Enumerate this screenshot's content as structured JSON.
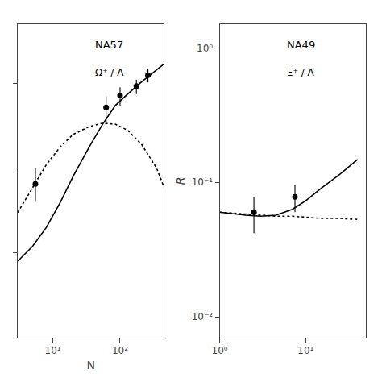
{
  "chart_data": [
    {
      "type": "line",
      "log": true,
      "grid": false,
      "tick_labels": "x",
      "xlabel": "N",
      "xlim": [
        3,
        450
      ],
      "ylim": [
        0.0001,
        0.5
      ],
      "xticks": [
        {
          "value": 10,
          "label": "10¹"
        },
        {
          "value": 100,
          "label": "10²"
        }
      ],
      "yticks": [
        0.0001,
        0.001,
        0.01,
        0.1
      ],
      "annotations": [
        "NA57",
        "Ω̄⁺ / Λ̄"
      ],
      "series": [
        {
          "type": "line",
          "line_style": "solid",
          "color": "#000000",
          "x": [
            3,
            5,
            8,
            13,
            20,
            35,
            55,
            85,
            130,
            210,
            350,
            450
          ],
          "values": [
            0.0008,
            0.0012,
            0.002,
            0.004,
            0.008,
            0.018,
            0.033,
            0.055,
            0.075,
            0.105,
            0.145,
            0.17
          ]
        },
        {
          "type": "line",
          "line_style": "dotted",
          "color": "#000000",
          "x": [
            3,
            5,
            8,
            13,
            20,
            35,
            55,
            85,
            130,
            210,
            350,
            450
          ],
          "values": [
            0.003,
            0.006,
            0.011,
            0.018,
            0.025,
            0.031,
            0.034,
            0.033,
            0.028,
            0.019,
            0.01,
            0.006
          ]
        },
        {
          "type": "scatter",
          "marker": "circle",
          "color": "#000000",
          "x": [
            5.5,
            62.0,
            100.0,
            175.0,
            260.0
          ],
          "values": [
            0.0065,
            0.052,
            0.072,
            0.093,
            0.125
          ],
          "error_low": [
            0.0025,
            0.018,
            0.018,
            0.018,
            0.022
          ],
          "error_high": [
            0.0035,
            0.018,
            0.018,
            0.018,
            0.022
          ]
        }
      ]
    },
    {
      "type": "line",
      "log": true,
      "grid": false,
      "ylabel": "R",
      "xlim": [
        1,
        50
      ],
      "ylim": [
        0.007,
        1.5
      ],
      "xticks": [
        {
          "value": 1,
          "label": "10⁰"
        },
        {
          "value": 10,
          "label": "10¹"
        }
      ],
      "yticks": [
        {
          "value": 0.01,
          "label": "10⁻²"
        },
        {
          "value": 0.1,
          "label": "10⁻¹"
        },
        {
          "value": 1,
          "label": "10⁰"
        }
      ],
      "annotations": [
        "NA49",
        "Ξ̄⁺ / Λ̄"
      ],
      "series": [
        {
          "type": "line",
          "line_style": "solid",
          "color": "#000000",
          "x": [
            1.0,
            1.5,
            2.0,
            3.0,
            4.5,
            7.0,
            10,
            15,
            25,
            40
          ],
          "values": [
            0.06,
            0.058,
            0.057,
            0.056,
            0.057,
            0.063,
            0.073,
            0.09,
            0.115,
            0.148
          ]
        },
        {
          "type": "line",
          "line_style": "dotted",
          "color": "#000000",
          "x": [
            1.0,
            1.5,
            2.0,
            3.0,
            4.5,
            7.0,
            10,
            15,
            25,
            40
          ],
          "values": [
            0.06,
            0.059,
            0.058,
            0.057,
            0.056,
            0.056,
            0.055,
            0.054,
            0.054,
            0.053
          ]
        },
        {
          "type": "scatter",
          "marker": "circle",
          "color": "#000000",
          "x": [
            2.5,
            7.5
          ],
          "values": [
            0.06,
            0.078
          ],
          "error_low": [
            0.018,
            0.018
          ],
          "error_high": [
            0.018,
            0.018
          ]
        }
      ]
    }
  ]
}
